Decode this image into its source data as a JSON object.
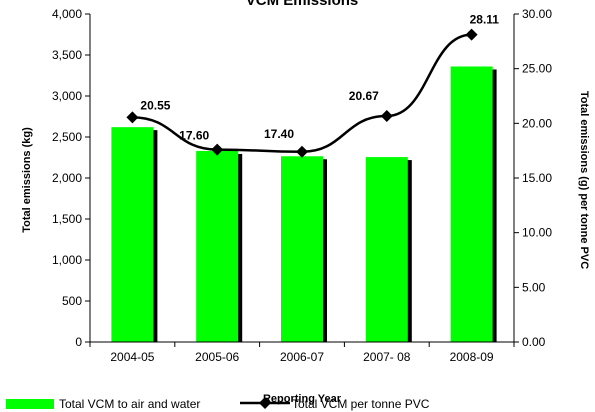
{
  "chart_data": {
    "type": "bar+line",
    "title": "VCM Emissions",
    "categories": [
      "2004-05",
      "2005-06",
      "2006-07",
      "2007- 08",
      "2008-09"
    ],
    "xlabel": "Reporting Year",
    "ylabel": "Total emissions (kg)",
    "ylabel2": "Total emissions (g) per tonne PVC",
    "ylim": [
      0,
      4000
    ],
    "ylim2": [
      0,
      30
    ],
    "y_ticks": [
      "0",
      "500",
      "1,000",
      "1,500",
      "2,000",
      "2,500",
      "3,000",
      "3,500",
      "4,000"
    ],
    "y2_ticks": [
      "0.00",
      "5.00",
      "10.00",
      "15.00",
      "20.00",
      "25.00",
      "30.00"
    ],
    "series": [
      {
        "name": "Total VCM to air and water",
        "kind": "bar",
        "axis": "left",
        "color": "#00ff00",
        "values": [
          2620,
          2330,
          2265,
          2255,
          3360
        ]
      },
      {
        "name": "Total VCM per tonne PVC",
        "kind": "line",
        "axis": "right",
        "color": "#000000",
        "values": [
          20.55,
          17.6,
          17.4,
          20.67,
          28.11
        ],
        "labels": [
          "20.55",
          "17.60",
          "17.40",
          "20.67",
          "28.11"
        ]
      }
    ],
    "grid": false,
    "legend": "bottom-left"
  }
}
